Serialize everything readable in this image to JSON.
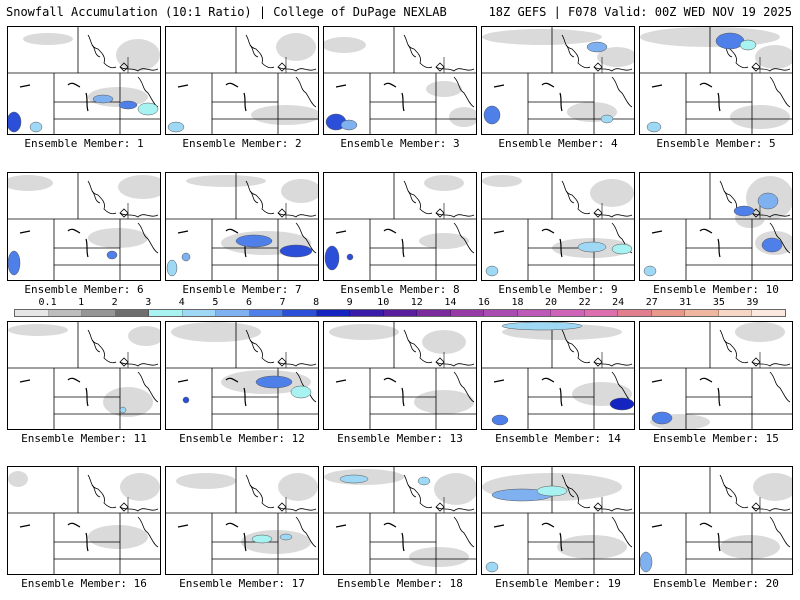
{
  "header": {
    "left_title": "Snowfall Accumulation (10:1 Ratio) | College of DuPage NEXLAB",
    "right_title": "18Z GEFS | F078 Valid: 00Z WED NOV 19 2025"
  },
  "colorbar": {
    "labels": [
      "0.1",
      "1",
      "2",
      "3",
      "4",
      "5",
      "6",
      "7",
      "8",
      "9",
      "10",
      "12",
      "14",
      "16",
      "18",
      "20",
      "22",
      "24",
      "27",
      "31",
      "35",
      "39"
    ],
    "colors": [
      "#e6e6e6",
      "#bdbdbd",
      "#969696",
      "#6e6e6e",
      "#a8f2f2",
      "#9fd8f5",
      "#7fb0f0",
      "#4f7fe8",
      "#2b4fd8",
      "#1424c0",
      "#3a1aa8",
      "#5a1d9e",
      "#7a2a9c",
      "#953aa6",
      "#a94bb0",
      "#bd5ab8",
      "#cf63b8",
      "#de6fae",
      "#e27f8f",
      "#e8998a",
      "#efb7a0",
      "#f6d6c4",
      "#fbe9df"
    ]
  },
  "panels": [
    {
      "label": "Ensemble Member: 1",
      "snow": [
        {
          "x": 95,
          "y": 72,
          "rx": 10,
          "ry": 4,
          "c": "#7fb0f0"
        },
        {
          "x": 120,
          "y": 78,
          "rx": 9,
          "ry": 4,
          "c": "#4f7fe8"
        },
        {
          "x": 140,
          "y": 82,
          "rx": 10,
          "ry": 6,
          "c": "#a8f2f2"
        },
        {
          "x": 6,
          "y": 95,
          "rx": 7,
          "ry": 10,
          "c": "#2b4fd8"
        },
        {
          "x": 28,
          "y": 100,
          "rx": 6,
          "ry": 5,
          "c": "#9fd8f5"
        }
      ],
      "gray": [
        {
          "x": 40,
          "y": 12,
          "rx": 25,
          "ry": 6
        },
        {
          "x": 130,
          "y": 28,
          "rx": 22,
          "ry": 16
        },
        {
          "x": 110,
          "y": 70,
          "rx": 30,
          "ry": 10
        }
      ]
    },
    {
      "label": "Ensemble Member: 2",
      "snow": [
        {
          "x": 10,
          "y": 100,
          "rx": 8,
          "ry": 5,
          "c": "#9fd8f5"
        }
      ],
      "gray": [
        {
          "x": 130,
          "y": 20,
          "rx": 20,
          "ry": 14
        },
        {
          "x": 120,
          "y": 88,
          "rx": 35,
          "ry": 10
        }
      ]
    },
    {
      "label": "Ensemble Member: 3",
      "snow": [
        {
          "x": 12,
          "y": 95,
          "rx": 10,
          "ry": 8,
          "c": "#2b4fd8"
        },
        {
          "x": 25,
          "y": 98,
          "rx": 8,
          "ry": 5,
          "c": "#7fb0f0"
        }
      ],
      "gray": [
        {
          "x": 20,
          "y": 18,
          "rx": 22,
          "ry": 8
        },
        {
          "x": 120,
          "y": 62,
          "rx": 18,
          "ry": 8
        },
        {
          "x": 140,
          "y": 90,
          "rx": 15,
          "ry": 10
        }
      ]
    },
    {
      "label": "Ensemble Member: 4",
      "snow": [
        {
          "x": 115,
          "y": 20,
          "rx": 10,
          "ry": 5,
          "c": "#7fb0f0"
        },
        {
          "x": 10,
          "y": 88,
          "rx": 8,
          "ry": 9,
          "c": "#4f7fe8"
        },
        {
          "x": 125,
          "y": 92,
          "rx": 6,
          "ry": 4,
          "c": "#9fd8f5"
        }
      ],
      "gray": [
        {
          "x": 60,
          "y": 10,
          "rx": 60,
          "ry": 8
        },
        {
          "x": 135,
          "y": 30,
          "rx": 20,
          "ry": 10
        },
        {
          "x": 110,
          "y": 85,
          "rx": 25,
          "ry": 10
        }
      ]
    },
    {
      "label": "Ensemble Member: 5",
      "snow": [
        {
          "x": 90,
          "y": 14,
          "rx": 14,
          "ry": 8,
          "c": "#4f7fe8"
        },
        {
          "x": 108,
          "y": 18,
          "rx": 8,
          "ry": 5,
          "c": "#a8f2f2"
        },
        {
          "x": 14,
          "y": 100,
          "rx": 7,
          "ry": 5,
          "c": "#9fd8f5"
        }
      ],
      "gray": [
        {
          "x": 70,
          "y": 10,
          "rx": 70,
          "ry": 10
        },
        {
          "x": 135,
          "y": 30,
          "rx": 20,
          "ry": 12
        },
        {
          "x": 120,
          "y": 90,
          "rx": 30,
          "ry": 12
        }
      ]
    },
    {
      "label": "Ensemble Member: 6",
      "snow": [
        {
          "x": 104,
          "y": 82,
          "rx": 5,
          "ry": 4,
          "c": "#4f7fe8"
        },
        {
          "x": 6,
          "y": 90,
          "rx": 6,
          "ry": 12,
          "c": "#4f7fe8"
        }
      ],
      "gray": [
        {
          "x": 20,
          "y": 10,
          "rx": 25,
          "ry": 8
        },
        {
          "x": 135,
          "y": 14,
          "rx": 25,
          "ry": 12
        },
        {
          "x": 110,
          "y": 65,
          "rx": 30,
          "ry": 10
        }
      ]
    },
    {
      "label": "Ensemble Member: 7",
      "snow": [
        {
          "x": 88,
          "y": 68,
          "rx": 18,
          "ry": 6,
          "c": "#4f7fe8"
        },
        {
          "x": 130,
          "y": 78,
          "rx": 16,
          "ry": 6,
          "c": "#2b4fd8"
        },
        {
          "x": 20,
          "y": 84,
          "rx": 4,
          "ry": 4,
          "c": "#7fb0f0"
        },
        {
          "x": 6,
          "y": 95,
          "rx": 5,
          "ry": 8,
          "c": "#9fd8f5"
        }
      ],
      "gray": [
        {
          "x": 60,
          "y": 8,
          "rx": 40,
          "ry": 6
        },
        {
          "x": 135,
          "y": 18,
          "rx": 20,
          "ry": 12
        },
        {
          "x": 100,
          "y": 70,
          "rx": 45,
          "ry": 12
        }
      ]
    },
    {
      "label": "Ensemble Member: 8",
      "snow": [
        {
          "x": 8,
          "y": 85,
          "rx": 7,
          "ry": 12,
          "c": "#2b4fd8"
        },
        {
          "x": 26,
          "y": 84,
          "rx": 3,
          "ry": 3,
          "c": "#2b4fd8"
        }
      ],
      "gray": [
        {
          "x": 120,
          "y": 10,
          "rx": 20,
          "ry": 8
        },
        {
          "x": 120,
          "y": 68,
          "rx": 25,
          "ry": 8
        }
      ]
    },
    {
      "label": "Ensemble Member: 9",
      "snow": [
        {
          "x": 110,
          "y": 74,
          "rx": 14,
          "ry": 5,
          "c": "#9fd8f5"
        },
        {
          "x": 140,
          "y": 76,
          "rx": 10,
          "ry": 5,
          "c": "#a8f2f2"
        },
        {
          "x": 10,
          "y": 98,
          "rx": 6,
          "ry": 5,
          "c": "#9fd8f5"
        }
      ],
      "gray": [
        {
          "x": 20,
          "y": 8,
          "rx": 20,
          "ry": 6
        },
        {
          "x": 130,
          "y": 20,
          "rx": 22,
          "ry": 14
        },
        {
          "x": 110,
          "y": 75,
          "rx": 40,
          "ry": 10
        }
      ]
    },
    {
      "label": "Ensemble Member: 10",
      "snow": [
        {
          "x": 128,
          "y": 28,
          "rx": 10,
          "ry": 8,
          "c": "#7fb0f0"
        },
        {
          "x": 104,
          "y": 38,
          "rx": 10,
          "ry": 5,
          "c": "#4f7fe8"
        },
        {
          "x": 132,
          "y": 72,
          "rx": 10,
          "ry": 7,
          "c": "#4f7fe8"
        },
        {
          "x": 10,
          "y": 98,
          "rx": 6,
          "ry": 5,
          "c": "#9fd8f5"
        }
      ],
      "gray": [
        {
          "x": 130,
          "y": 25,
          "rx": 24,
          "ry": 22
        },
        {
          "x": 110,
          "y": 45,
          "rx": 15,
          "ry": 10
        },
        {
          "x": 135,
          "y": 70,
          "rx": 20,
          "ry": 12
        }
      ]
    },
    {
      "label": "Ensemble Member: 11",
      "snow": [
        {
          "x": 115,
          "y": 88,
          "rx": 3,
          "ry": 3,
          "c": "#9fd8f5"
        }
      ],
      "gray": [
        {
          "x": 30,
          "y": 8,
          "rx": 30,
          "ry": 6
        },
        {
          "x": 138,
          "y": 14,
          "rx": 18,
          "ry": 10
        },
        {
          "x": 120,
          "y": 80,
          "rx": 25,
          "ry": 15
        }
      ]
    },
    {
      "label": "Ensemble Member: 12",
      "snow": [
        {
          "x": 108,
          "y": 60,
          "rx": 18,
          "ry": 6,
          "c": "#4f7fe8"
        },
        {
          "x": 135,
          "y": 70,
          "rx": 10,
          "ry": 6,
          "c": "#a8f2f2"
        },
        {
          "x": 20,
          "y": 78,
          "rx": 3,
          "ry": 3,
          "c": "#2b4fd8"
        }
      ],
      "gray": [
        {
          "x": 50,
          "y": 10,
          "rx": 45,
          "ry": 10
        },
        {
          "x": 100,
          "y": 60,
          "rx": 45,
          "ry": 12
        }
      ]
    },
    {
      "label": "Ensemble Member: 13",
      "snow": [],
      "gray": [
        {
          "x": 40,
          "y": 10,
          "rx": 35,
          "ry": 8
        },
        {
          "x": 120,
          "y": 20,
          "rx": 22,
          "ry": 12
        },
        {
          "x": 120,
          "y": 80,
          "rx": 30,
          "ry": 12
        }
      ]
    },
    {
      "label": "Ensemble Member: 14",
      "snow": [
        {
          "x": 60,
          "y": 4,
          "rx": 40,
          "ry": 4,
          "c": "#9fd8f5"
        },
        {
          "x": 140,
          "y": 82,
          "rx": 12,
          "ry": 6,
          "c": "#1424c0"
        },
        {
          "x": 18,
          "y": 98,
          "rx": 8,
          "ry": 5,
          "c": "#4f7fe8"
        }
      ],
      "gray": [
        {
          "x": 80,
          "y": 10,
          "rx": 60,
          "ry": 8
        },
        {
          "x": 120,
          "y": 72,
          "rx": 30,
          "ry": 12
        }
      ]
    },
    {
      "label": "Ensemble Member: 15",
      "snow": [
        {
          "x": 22,
          "y": 96,
          "rx": 10,
          "ry": 6,
          "c": "#4f7fe8"
        }
      ],
      "gray": [
        {
          "x": 120,
          "y": 10,
          "rx": 25,
          "ry": 10
        },
        {
          "x": 40,
          "y": 100,
          "rx": 30,
          "ry": 8
        }
      ]
    },
    {
      "label": "Ensemble Member: 16",
      "snow": [],
      "gray": [
        {
          "x": 10,
          "y": 12,
          "rx": 10,
          "ry": 8
        },
        {
          "x": 132,
          "y": 20,
          "rx": 20,
          "ry": 14
        },
        {
          "x": 110,
          "y": 70,
          "rx": 30,
          "ry": 12
        }
      ]
    },
    {
      "label": "Ensemble Member: 17",
      "snow": [
        {
          "x": 96,
          "y": 72,
          "rx": 10,
          "ry": 4,
          "c": "#a8f2f2"
        },
        {
          "x": 120,
          "y": 70,
          "rx": 6,
          "ry": 3,
          "c": "#9fd8f5"
        }
      ],
      "gray": [
        {
          "x": 40,
          "y": 14,
          "rx": 30,
          "ry": 8
        },
        {
          "x": 132,
          "y": 20,
          "rx": 20,
          "ry": 14
        },
        {
          "x": 110,
          "y": 75,
          "rx": 35,
          "ry": 12
        }
      ]
    },
    {
      "label": "Ensemble Member: 18",
      "snow": [
        {
          "x": 30,
          "y": 12,
          "rx": 14,
          "ry": 4,
          "c": "#9fd8f5"
        },
        {
          "x": 100,
          "y": 14,
          "rx": 6,
          "ry": 4,
          "c": "#9fd8f5"
        }
      ],
      "gray": [
        {
          "x": 40,
          "y": 10,
          "rx": 40,
          "ry": 8
        },
        {
          "x": 132,
          "y": 22,
          "rx": 22,
          "ry": 16
        },
        {
          "x": 115,
          "y": 90,
          "rx": 30,
          "ry": 10
        }
      ]
    },
    {
      "label": "Ensemble Member: 19",
      "snow": [
        {
          "x": 40,
          "y": 28,
          "rx": 30,
          "ry": 6,
          "c": "#7fb0f0"
        },
        {
          "x": 70,
          "y": 24,
          "rx": 15,
          "ry": 5,
          "c": "#a8f2f2"
        },
        {
          "x": 10,
          "y": 100,
          "rx": 6,
          "ry": 5,
          "c": "#9fd8f5"
        }
      ],
      "gray": [
        {
          "x": 70,
          "y": 20,
          "rx": 70,
          "ry": 14
        },
        {
          "x": 110,
          "y": 80,
          "rx": 35,
          "ry": 12
        }
      ]
    },
    {
      "label": "Ensemble Member: 20",
      "snow": [
        {
          "x": 6,
          "y": 95,
          "rx": 6,
          "ry": 10,
          "c": "#7fb0f0"
        }
      ],
      "gray": [
        {
          "x": 135,
          "y": 20,
          "rx": 22,
          "ry": 14
        },
        {
          "x": 110,
          "y": 80,
          "rx": 30,
          "ry": 12
        }
      ]
    }
  ]
}
